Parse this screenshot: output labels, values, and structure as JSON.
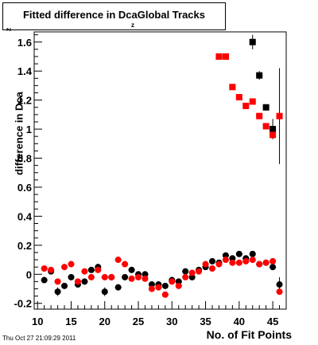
{
  "chart_data": {
    "type": "scatter",
    "title": "Fitted difference in Dca",
    "title_subscript": "z",
    "title_suffix": "Global Tracks",
    "xlabel": "No. of Fit Points",
    "ylabel": "difference in Dca",
    "ylabel_superscript": "z",
    "xlim": [
      9.5,
      47
    ],
    "ylim": [
      -0.24,
      1.67
    ],
    "xticks": [
      10,
      15,
      20,
      25,
      30,
      35,
      40,
      45
    ],
    "yticks": [
      -0.2,
      0,
      0.2,
      0.4,
      0.6,
      0.8,
      1,
      1.2,
      1.4,
      1.6
    ],
    "ytick_labels": [
      "-0.2",
      "0",
      "0.2",
      "0.4",
      "0.6",
      "0.8",
      "1",
      "1.2",
      "1.4",
      "1.6"
    ],
    "series": [
      {
        "color": "#000000",
        "marker": "circle",
        "x": [
          11,
          12,
          13,
          14,
          15,
          16,
          17,
          18,
          19,
          20,
          21,
          22,
          23,
          24,
          25,
          26,
          27,
          28,
          29,
          30,
          31,
          32,
          33,
          34,
          35,
          36,
          37,
          38,
          39,
          40,
          41,
          42,
          43,
          44,
          45,
          46
        ],
        "y": [
          -0.04,
          0.02,
          -0.12,
          -0.08,
          -0.02,
          -0.07,
          -0.05,
          0.03,
          0.05,
          -0.12,
          -0.02,
          -0.09,
          -0.02,
          0.03,
          0.0,
          0.0,
          -0.07,
          -0.07,
          -0.08,
          -0.04,
          -0.05,
          0.02,
          -0.02,
          0.03,
          0.05,
          0.09,
          0.08,
          0.13,
          0.11,
          0.14,
          0.11,
          0.14,
          0.07,
          0.08,
          0.05,
          -0.07
        ],
        "yerr": [
          0.02,
          0.02,
          0.03,
          0.02,
          0.02,
          0.02,
          0.02,
          0.02,
          0.02,
          0.03,
          0.02,
          0.02,
          0.02,
          0.02,
          0.02,
          0.02,
          0.02,
          0.02,
          0.02,
          0.02,
          0.02,
          0.02,
          0.02,
          0.02,
          0.02,
          0.02,
          0.02,
          0.02,
          0.02,
          0.02,
          0.02,
          0.02,
          0.02,
          0.02,
          0.02,
          0.05
        ]
      },
      {
        "color": "#000000",
        "marker": "square",
        "x": [
          37,
          38,
          42,
          43,
          44,
          45
        ],
        "y": [
          1.5,
          1.5,
          1.6,
          1.37,
          1.15,
          1.0
        ],
        "yerr": [
          0.0,
          0.0,
          0.05,
          0.03,
          0.0,
          0.07
        ]
      },
      {
        "color": "#ff0000",
        "marker": "circle",
        "x": [
          11,
          12,
          13,
          14,
          15,
          16,
          17,
          18,
          19,
          20,
          21,
          22,
          23,
          24,
          25,
          26,
          27,
          28,
          29,
          30,
          31,
          32,
          33,
          34,
          35,
          36,
          37,
          38,
          39,
          40,
          41,
          42,
          43,
          44,
          45,
          46
        ],
        "y": [
          0.04,
          0.03,
          -0.05,
          0.05,
          0.07,
          -0.05,
          0.02,
          -0.02,
          0.03,
          -0.02,
          -0.02,
          0.1,
          0.07,
          -0.03,
          -0.02,
          -0.03,
          -0.1,
          -0.09,
          -0.14,
          -0.05,
          -0.08,
          -0.02,
          0.01,
          0.02,
          0.07,
          0.04,
          0.07,
          0.1,
          0.08,
          0.08,
          0.09,
          0.1,
          0.07,
          0.08,
          0.09,
          -0.12
        ],
        "yerr": [
          0.02,
          0.02,
          0.02,
          0.02,
          0.02,
          0.02,
          0.02,
          0.02,
          0.02,
          0.02,
          0.02,
          0.02,
          0.02,
          0.02,
          0.02,
          0.02,
          0.02,
          0.02,
          0.02,
          0.02,
          0.02,
          0.02,
          0.02,
          0.02,
          0.02,
          0.02,
          0.02,
          0.02,
          0.02,
          0.02,
          0.02,
          0.02,
          0.02,
          0.02,
          0.02,
          0.02
        ]
      },
      {
        "color": "#ff0000",
        "marker": "square",
        "x": [
          37,
          38,
          39,
          40,
          41,
          42,
          43,
          44,
          45,
          46
        ],
        "y": [
          1.5,
          1.5,
          1.29,
          1.22,
          1.16,
          1.19,
          1.09,
          1.02,
          0.96,
          1.09
        ],
        "yerr": [
          0.0,
          0.0,
          0.0,
          0.0,
          0.0,
          0.0,
          0.0,
          0.0,
          0.0,
          0.33
        ]
      }
    ]
  },
  "footer": {
    "timestamp": "Thu Oct 27 21:09:29 2011"
  }
}
